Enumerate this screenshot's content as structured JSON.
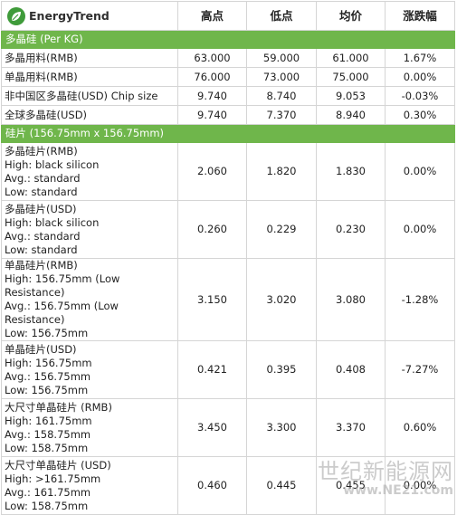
{
  "header": {
    "logo_text": "EnergyTrend",
    "columns": [
      "高点",
      "低点",
      "均价",
      "涨跌幅"
    ]
  },
  "sections": [
    {
      "title": "多晶硅 (Per KG)",
      "rows": [
        {
          "name": "多晶用料(RMB)",
          "values": [
            "63.000",
            "59.000",
            "61.000",
            "1.67%"
          ]
        },
        {
          "name": "单晶用料(RMB)",
          "values": [
            "76.000",
            "73.000",
            "75.000",
            "0.00%"
          ]
        },
        {
          "name": "非中国区多晶硅(USD) Chip size",
          "values": [
            "9.740",
            "8.740",
            "9.053",
            "-0.03%"
          ]
        },
        {
          "name": "全球多晶硅(USD)",
          "values": [
            "9.740",
            "7.370",
            "8.940",
            "0.30%"
          ]
        }
      ]
    },
    {
      "title": "硅片 (156.75mm x 156.75mm)",
      "rows": [
        {
          "name": "多晶硅片(RMB)\nHigh: black silicon\nAvg.: standard\nLow: standard",
          "values": [
            "2.060",
            "1.820",
            "1.830",
            "0.00%"
          ]
        },
        {
          "name": "多晶硅片(USD)\nHigh: black silicon\nAvg.: standard\nLow: standard",
          "values": [
            "0.260",
            "0.229",
            "0.230",
            "0.00%"
          ]
        },
        {
          "name": "单晶硅片(RMB)\nHigh: 156.75mm (Low Resistance)\nAvg.: 156.75mm (Low Resistance)\nLow: 156.75mm",
          "values": [
            "3.150",
            "3.020",
            "3.080",
            "-1.28%"
          ]
        },
        {
          "name": "单晶硅片(USD)\nHigh: 156.75mm\nAvg.: 156.75mm\nLow: 156.75mm",
          "values": [
            "0.421",
            "0.395",
            "0.408",
            "-7.27%"
          ]
        },
        {
          "name": "大尺寸单晶硅片 (RMB)\nHigh: 161.75mm\nAvg.: 158.75mm\nLow: 158.75mm",
          "values": [
            "3.450",
            "3.300",
            "3.370",
            "0.60%"
          ]
        },
        {
          "name": "大尺寸单晶硅片 (USD)\nHigh: >161.75mm\nAvg.: 161.75mm\nLow: 158.75mm",
          "values": [
            "0.460",
            "0.445",
            "0.455",
            "0.00%"
          ]
        }
      ]
    }
  ],
  "watermark": {
    "text": "世纪新能源网",
    "url": "www.NE21.com"
  },
  "colors": {
    "section_bar": "#6fb64b",
    "logo_green": "#3f9b3a"
  }
}
